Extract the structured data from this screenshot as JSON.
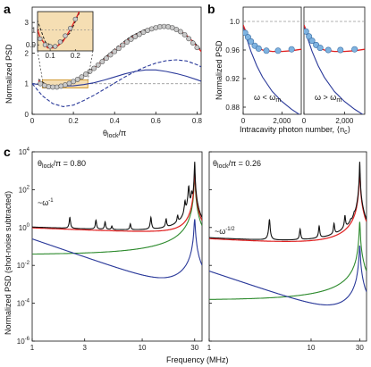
{
  "chart_data": [
    {
      "panel": "a",
      "type": "line+scatter",
      "xlabel": "θlock/π",
      "ylabel": "Normalized PSD",
      "xlim": [
        0,
        0.82
      ],
      "ylim": [
        0,
        3.5
      ],
      "x_ticks": [
        "0",
        "0.2",
        "0.4",
        "0.6",
        "0.8"
      ],
      "y_ticks": [
        "0",
        "1",
        "2",
        "3"
      ],
      "reference_line": 1,
      "colors": {
        "red": "#e02020",
        "blue": "#2b3a9a",
        "gray": "#888888",
        "points": "#c9c9c9"
      },
      "series": [
        {
          "style": "solid-red",
          "x": [
            0.03,
            0.06,
            0.09,
            0.12,
            0.15,
            0.18,
            0.21,
            0.24,
            0.28,
            0.32,
            0.36,
            0.4,
            0.44,
            0.48,
            0.52,
            0.56,
            0.6,
            0.64,
            0.68,
            0.72,
            0.76,
            0.8,
            0.82
          ],
          "y": [
            1.1,
            0.95,
            0.88,
            0.88,
            0.92,
            1.0,
            1.1,
            1.22,
            1.4,
            1.62,
            1.85,
            2.08,
            2.3,
            2.5,
            2.66,
            2.78,
            2.86,
            2.88,
            2.84,
            2.72,
            2.52,
            2.22,
            2.05
          ]
        },
        {
          "style": "solid-blue",
          "x": [
            0.0,
            0.05,
            0.1,
            0.15,
            0.2,
            0.25,
            0.3,
            0.35,
            0.4,
            0.45,
            0.5,
            0.55,
            0.6,
            0.65,
            0.7,
            0.75,
            0.8,
            0.82
          ],
          "y": [
            1.0,
            0.96,
            0.93,
            0.92,
            0.93,
            0.97,
            1.03,
            1.12,
            1.22,
            1.32,
            1.4,
            1.45,
            1.45,
            1.4,
            1.33,
            1.24,
            1.13,
            1.08
          ]
        },
        {
          "style": "dashed-blue",
          "x": [
            0.0,
            0.05,
            0.1,
            0.15,
            0.2,
            0.25,
            0.3,
            0.35,
            0.4,
            0.45,
            0.5,
            0.55,
            0.6,
            0.65,
            0.7,
            0.75,
            0.8,
            0.82
          ],
          "y": [
            1.0,
            0.6,
            0.35,
            0.25,
            0.3,
            0.45,
            0.62,
            0.82,
            1.02,
            1.22,
            1.4,
            1.55,
            1.67,
            1.75,
            1.78,
            1.74,
            1.62,
            1.55
          ]
        },
        {
          "style": "dashed-black",
          "x": [
            0.03,
            0.08,
            0.12,
            0.18,
            0.24,
            0.3,
            0.36,
            0.42,
            0.48,
            0.54,
            0.6,
            0.66,
            0.72,
            0.78,
            0.82
          ],
          "y": [
            1.15,
            0.92,
            0.88,
            0.98,
            1.2,
            1.55,
            1.9,
            2.25,
            2.55,
            2.75,
            2.85,
            2.85,
            2.7,
            2.4,
            2.1
          ]
        }
      ],
      "points": {
        "x": [
          0.04,
          0.06,
          0.08,
          0.1,
          0.12,
          0.14,
          0.16,
          0.18,
          0.2,
          0.22,
          0.24,
          0.26,
          0.28,
          0.3,
          0.32,
          0.34,
          0.36,
          0.38,
          0.4,
          0.42,
          0.44,
          0.46,
          0.48,
          0.5,
          0.52,
          0.54,
          0.56,
          0.58,
          0.6,
          0.62,
          0.64,
          0.66,
          0.68,
          0.7,
          0.72,
          0.74,
          0.76,
          0.78,
          0.8
        ],
        "y": [
          1.0,
          0.94,
          0.9,
          0.89,
          0.89,
          0.92,
          0.96,
          1.01,
          1.07,
          1.14,
          1.22,
          1.31,
          1.4,
          1.5,
          1.61,
          1.72,
          1.83,
          1.94,
          2.05,
          2.15,
          2.26,
          2.36,
          2.45,
          2.54,
          2.61,
          2.68,
          2.74,
          2.79,
          2.83,
          2.86,
          2.87,
          2.86,
          2.83,
          2.77,
          2.7,
          2.6,
          2.47,
          2.33,
          2.18
        ]
      },
      "inset": {
        "xlim": [
          0.05,
          0.27
        ],
        "ylim": [
          0.86,
          1.12
        ],
        "x_ticks": [
          "0.1",
          "0.2"
        ],
        "y_ticks": [
          "0.9",
          "1"
        ]
      }
    },
    {
      "panel": "b",
      "type": "line+scatter",
      "ylabel": "Normalized PSD",
      "xlabel_parts": {
        "main": "Intracavity photon number, ⟨n",
        "sub": "c",
        "end": "⟩"
      },
      "xlim": [
        0,
        3000
      ],
      "ylim": [
        0.87,
        1.02
      ],
      "y_ticks": [
        "0.88",
        "0.92",
        "0.96",
        "1.0"
      ],
      "x_ticks": [
        "0",
        "2,000"
      ],
      "subpanels": [
        {
          "label_main": "ω < ω",
          "label_sub": "m",
          "points": {
            "x": [
              100,
              250,
              400,
              600,
              800,
              1200,
              1800,
              2500
            ],
            "y": [
              0.984,
              0.978,
              0.972,
              0.966,
              0.962,
              0.959,
              0.959,
              0.961
            ]
          },
          "red": {
            "x": [
              0,
              200,
              400,
              700,
              1000,
              1500,
              2000,
              2500,
              3000
            ],
            "y": [
              0.995,
              0.982,
              0.972,
              0.964,
              0.96,
              0.958,
              0.958,
              0.959,
              0.961
            ]
          },
          "blue": {
            "x": [
              0,
              200,
              400,
              700,
              1000,
              1500,
              2000,
              2500,
              3000
            ],
            "y": [
              0.995,
              0.975,
              0.958,
              0.938,
              0.922,
              0.902,
              0.888,
              0.877,
              0.868
            ]
          }
        },
        {
          "label_main": "ω > ω",
          "label_sub": "m",
          "points": {
            "x": [
              100,
              250,
              400,
              600,
              800,
              1200,
              1800,
              2500
            ],
            "y": [
              0.986,
              0.979,
              0.973,
              0.967,
              0.963,
              0.96,
              0.96,
              0.961
            ]
          },
          "red": {
            "x": [
              0,
              200,
              400,
              700,
              1000,
              1500,
              2000,
              2500,
              3000
            ],
            "y": [
              0.995,
              0.982,
              0.972,
              0.964,
              0.96,
              0.958,
              0.958,
              0.959,
              0.961
            ]
          },
          "blue": {
            "x": [
              0,
              200,
              400,
              700,
              1000,
              1500,
              2000,
              2500,
              3000
            ],
            "y": [
              0.995,
              0.975,
              0.958,
              0.938,
              0.922,
              0.902,
              0.888,
              0.877,
              0.868
            ]
          }
        }
      ]
    },
    {
      "panel": "c",
      "type": "line",
      "ylabel": "Normalized PSD (shot-noise subtracted)",
      "xlabel": "Frequency (MHz)",
      "x_scale": "log",
      "y_scale": "log",
      "xlim": [
        1,
        35
      ],
      "ylim": [
        1e-06,
        10000.0
      ],
      "y_ticks": [
        {
          "m": "10",
          "e": "4"
        },
        {
          "m": "10",
          "e": "2"
        },
        {
          "m": "10",
          "e": "0"
        },
        {
          "m": "10",
          "e": "-2"
        },
        {
          "m": "10",
          "e": "-4"
        },
        {
          "m": "10",
          "e": "-6"
        }
      ],
      "x_ticks_left": [
        "1",
        "3",
        "10",
        "30"
      ],
      "x_ticks_right": [
        "1",
        "10",
        "30"
      ],
      "resonance_mhz": 30,
      "colors": {
        "black": "#111111",
        "red": "#e02020",
        "blue": "#2b3a9a",
        "green": "#2e8b2e"
      },
      "subpanels": [
        {
          "title_main": "θ",
          "title_sub": "lock",
          "title_end": "/π = 0.80",
          "slope_main": "~ω",
          "slope_exp": "-1",
          "red_level": 0.9,
          "red_slope": -0.25,
          "blue_level": 0.25,
          "blue_slope": -2,
          "green_level": 0.0025,
          "peaks": [
            [
              2.2,
              2.5
            ],
            [
              3.8,
              1.6
            ],
            [
              4.6,
              1.2
            ],
            [
              5.3,
              0.4
            ],
            [
              7.8,
              0.8
            ],
            [
              12.0,
              2.6
            ],
            [
              16.5,
              1.8
            ],
            [
              21.0,
              2.4
            ],
            [
              24.5,
              20
            ],
            [
              26.5,
              150
            ],
            [
              28.2,
              60
            ]
          ]
        },
        {
          "title_main": "θ",
          "title_sub": "lock",
          "title_end": "/π = 0.26",
          "slope_main": "~ω",
          "slope_exp": "-1/2",
          "red_level": 0.2,
          "red_slope": -0.4,
          "blue_level": 0.005,
          "blue_slope": -1.8,
          "green_level": 1e-05,
          "peaks": [
            [
              3.9,
              2.4
            ],
            [
              7.8,
              0.6
            ],
            [
              12.0,
              0.9
            ],
            [
              16.8,
              1.2
            ],
            [
              21.5,
              3.5
            ],
            [
              24.5,
              0.6
            ],
            [
              26.5,
              1.5
            ]
          ]
        }
      ]
    }
  ]
}
